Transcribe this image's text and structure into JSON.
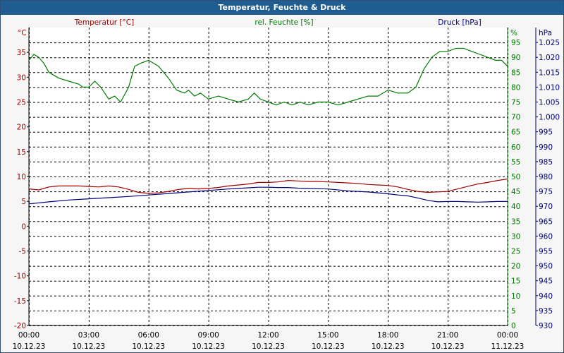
{
  "window": {
    "title": "Temperatur, Feuchte & Druck"
  },
  "colors": {
    "temperature": "#a00000",
    "humidity": "#007a00",
    "pressure": "#00007a",
    "grid": "#000000",
    "plot_bg": "#ffffff"
  },
  "chart_data": {
    "type": "line",
    "title": "Temperatur, Feuchte & Druck",
    "grid": true,
    "x_ticks": [
      {
        "time": "00:00",
        "date": "10.12.23"
      },
      {
        "time": "03:00",
        "date": "10.12.23"
      },
      {
        "time": "06:00",
        "date": "10.12.23"
      },
      {
        "time": "09:00",
        "date": "10.12.23"
      },
      {
        "time": "12:00",
        "date": "10.12.23"
      },
      {
        "time": "15:00",
        "date": "10.12.23"
      },
      {
        "time": "18:00",
        "date": "10.12.23"
      },
      {
        "time": "21:00",
        "date": "10.12.23"
      },
      {
        "time": "00:00",
        "date": "11.12.23"
      }
    ],
    "x_range_hours": [
      0,
      24
    ],
    "axes": {
      "temperature": {
        "label": "Temperatur [°C]",
        "unit": "°C",
        "range": [
          -20,
          40
        ],
        "ticks": [
          "35",
          "30",
          "25",
          "20",
          "15",
          "10",
          "5",
          "0",
          "-5",
          "-10",
          "-15",
          "-20"
        ],
        "tick_values": [
          35,
          30,
          25,
          20,
          15,
          10,
          5,
          0,
          -5,
          -10,
          -15,
          -20
        ]
      },
      "humidity": {
        "label": "rel. Feuchte [%]",
        "unit": "%",
        "range": [
          0,
          100
        ],
        "ticks": [
          "95",
          "90",
          "85",
          "80",
          "75",
          "70",
          "65",
          "60",
          "55",
          "50",
          "45",
          "40",
          "35",
          "30",
          "25",
          "20",
          "15",
          "10",
          "5",
          "0"
        ],
        "tick_values": [
          95,
          90,
          85,
          80,
          75,
          70,
          65,
          60,
          55,
          50,
          45,
          40,
          35,
          30,
          25,
          20,
          15,
          10,
          5,
          0
        ]
      },
      "pressure": {
        "label": "Druck [hPa]",
        "unit": "hPa",
        "range": [
          930,
          1030
        ],
        "ticks": [
          "1.025",
          "1.020",
          "1.015",
          "1.010",
          "1.005",
          "1.000",
          "995",
          "990",
          "985",
          "980",
          "975",
          "970",
          "965",
          "960",
          "955",
          "950",
          "945",
          "940",
          "935",
          "930"
        ],
        "tick_values": [
          1025,
          1020,
          1015,
          1010,
          1005,
          1000,
          995,
          990,
          985,
          980,
          975,
          970,
          965,
          960,
          955,
          950,
          945,
          940,
          935,
          930
        ]
      }
    },
    "series": [
      {
        "name": "Temperatur [°C]",
        "axis": "temperature",
        "x": [
          0,
          0.5,
          1,
          1.5,
          2,
          2.5,
          3,
          3.5,
          4,
          4.5,
          5,
          5.5,
          6,
          6.5,
          7,
          7.5,
          8,
          8.5,
          9,
          9.5,
          10,
          10.5,
          11,
          11.5,
          12,
          12.5,
          13,
          13.5,
          14,
          14.5,
          15,
          15.5,
          16,
          16.5,
          17,
          17.5,
          18,
          18.5,
          19,
          19.5,
          20,
          20.5,
          21,
          21.5,
          22,
          22.5,
          23,
          23.5,
          24
        ],
        "values": [
          7.5,
          7.3,
          7.9,
          8.1,
          8.1,
          8.1,
          8.0,
          7.9,
          8.1,
          7.9,
          7.4,
          6.8,
          6.6,
          6.7,
          7.0,
          7.4,
          7.6,
          7.5,
          7.6,
          7.8,
          8.1,
          8.3,
          8.5,
          8.8,
          8.8,
          8.9,
          9.2,
          9.1,
          9.0,
          9.0,
          8.9,
          8.8,
          8.7,
          8.6,
          8.4,
          8.3,
          8.2,
          7.9,
          7.4,
          7.0,
          6.8,
          6.9,
          7.0,
          7.5,
          8.0,
          8.5,
          8.8,
          9.2,
          9.5
        ]
      },
      {
        "name": "rel. Feuchte [%]",
        "axis": "humidity",
        "x": [
          0,
          0.25,
          0.5,
          0.75,
          1,
          1.5,
          2,
          2.5,
          2.7,
          3,
          3.3,
          3.6,
          4,
          4.3,
          4.6,
          5,
          5.3,
          5.6,
          6,
          6.5,
          7,
          7.4,
          7.8,
          8,
          8.3,
          8.6,
          9,
          9.5,
          10,
          10.5,
          11,
          11.3,
          11.6,
          12,
          12.4,
          12.8,
          13.2,
          13.6,
          14,
          14.5,
          15,
          15.5,
          16,
          16.5,
          17,
          17.5,
          18,
          18.5,
          19,
          19.4,
          19.8,
          20.2,
          20.6,
          21,
          21.4,
          21.8,
          22.2,
          22.6,
          23,
          23.4,
          23.7,
          24
        ],
        "values": [
          89,
          91,
          90,
          88,
          85,
          83,
          82,
          81,
          80,
          80,
          82,
          80,
          76,
          77,
          75,
          80,
          87,
          88,
          89,
          87,
          83,
          79,
          78,
          79,
          77,
          78,
          76,
          77,
          76,
          75,
          76,
          78,
          76,
          75,
          74,
          75,
          74,
          75,
          74,
          75,
          75,
          74,
          75,
          76,
          77,
          77,
          79,
          78,
          78,
          80,
          86,
          90,
          92,
          92,
          93,
          93,
          92,
          91,
          90,
          89,
          89,
          87
        ]
      },
      {
        "name": "Druck [hPa]",
        "axis": "pressure",
        "x": [
          0,
          1,
          2,
          3,
          4,
          5,
          6,
          7,
          8,
          9,
          10,
          10.5,
          11,
          11.5,
          12,
          12.5,
          13,
          13.5,
          14,
          15,
          16,
          17,
          18,
          18.5,
          19,
          19.5,
          20,
          20.5,
          21,
          21.5,
          22,
          22.5,
          23,
          23.5,
          24
        ],
        "values": [
          970.8,
          971.5,
          972.1,
          972.5,
          972.9,
          973.3,
          973.8,
          974.3,
          974.8,
          975.3,
          975.8,
          976,
          976.2,
          976.4,
          976.4,
          976.3,
          976.3,
          976.1,
          976,
          975.8,
          975.2,
          974.8,
          974.2,
          973.8,
          973.5,
          972.8,
          972,
          971.5,
          971.6,
          971.6,
          971.5,
          971.4,
          971.5,
          971.6,
          971.6
        ]
      }
    ]
  }
}
